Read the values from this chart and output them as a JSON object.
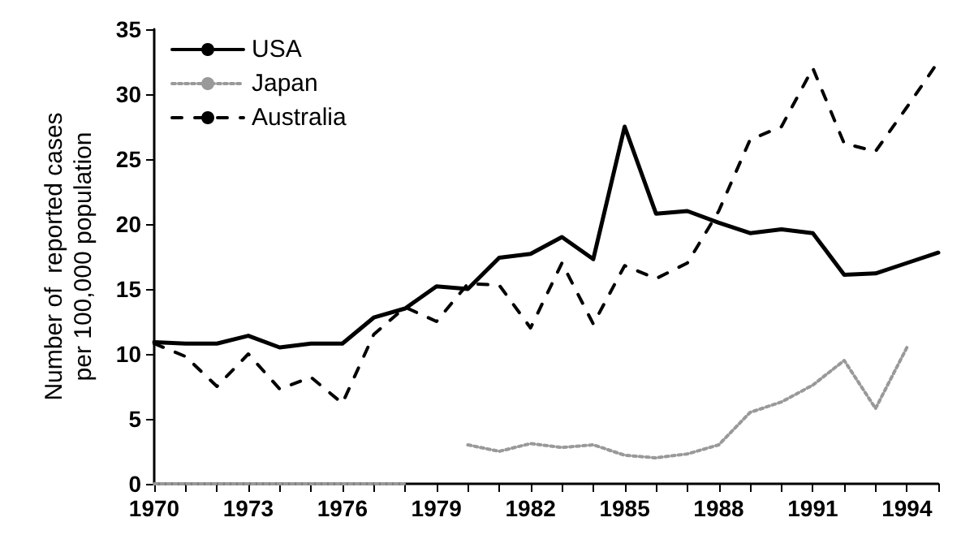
{
  "chart_data": {
    "type": "line",
    "ylabel": "Number of  reported cases\nper 100,000 population",
    "x": [
      1970,
      1971,
      1972,
      1973,
      1974,
      1975,
      1976,
      1977,
      1978,
      1979,
      1980,
      1981,
      1982,
      1983,
      1984,
      1985,
      1986,
      1987,
      1988,
      1989,
      1990,
      1991,
      1992,
      1993,
      1994,
      1995
    ],
    "series": [
      {
        "name": "USA",
        "color": "#000000",
        "line_style": "solid",
        "values": [
          10.9,
          10.8,
          10.8,
          11.4,
          10.5,
          10.8,
          10.8,
          12.8,
          13.5,
          15.2,
          15.0,
          17.4,
          17.7,
          19.0,
          17.3,
          27.5,
          20.8,
          21.0,
          20.1,
          19.3,
          19.6,
          19.3,
          16.1,
          16.2,
          17.0,
          17.8
        ]
      },
      {
        "name": "Japan",
        "color": "#999999",
        "line_style": "dotted",
        "values": [
          0,
          0,
          0,
          0,
          0,
          0,
          0,
          0,
          0,
          null,
          3.0,
          2.5,
          3.1,
          2.8,
          3.0,
          2.2,
          2.0,
          2.3,
          3.0,
          5.5,
          6.3,
          7.6,
          9.5,
          5.8,
          10.5,
          null
        ]
      },
      {
        "name": "Australia",
        "color": "#000000",
        "line_style": "dashed",
        "values": [
          10.8,
          9.8,
          7.5,
          10.0,
          7.3,
          8.2,
          6.2,
          11.5,
          13.6,
          12.5,
          15.4,
          15.3,
          12.0,
          17.0,
          12.3,
          16.8,
          15.8,
          17.0,
          21.0,
          26.5,
          27.5,
          32.0,
          26.2,
          25.6,
          29.0,
          32.5
        ]
      }
    ],
    "xlim": [
      1970,
      1995
    ],
    "xticks": [
      1970,
      {
        "value": 1971,
        "label": null
      },
      {
        "value": 1972,
        "label": null
      },
      1973,
      {
        "value": 1974,
        "label": null
      },
      {
        "value": 1975,
        "label": null
      },
      1976,
      {
        "value": 1977,
        "label": null
      },
      {
        "value": 1978,
        "label": null
      },
      1979,
      {
        "value": 1980,
        "label": null
      },
      {
        "value": 1981,
        "label": null
      },
      1982,
      {
        "value": 1983,
        "label": null
      },
      {
        "value": 1984,
        "label": null
      },
      1985,
      {
        "value": 1986,
        "label": null
      },
      {
        "value": 1987,
        "label": null
      },
      1988,
      {
        "value": 1989,
        "label": null
      },
      {
        "value": 1990,
        "label": null
      },
      1991,
      {
        "value": 1992,
        "label": null
      },
      {
        "value": 1993,
        "label": null
      },
      1994,
      {
        "value": 1995,
        "label": null
      }
    ],
    "ylim": [
      0,
      35
    ],
    "yticks": [
      0,
      5,
      10,
      15,
      20,
      25,
      30,
      35
    ],
    "grid": false,
    "legend": "top left",
    "marker": "none"
  }
}
